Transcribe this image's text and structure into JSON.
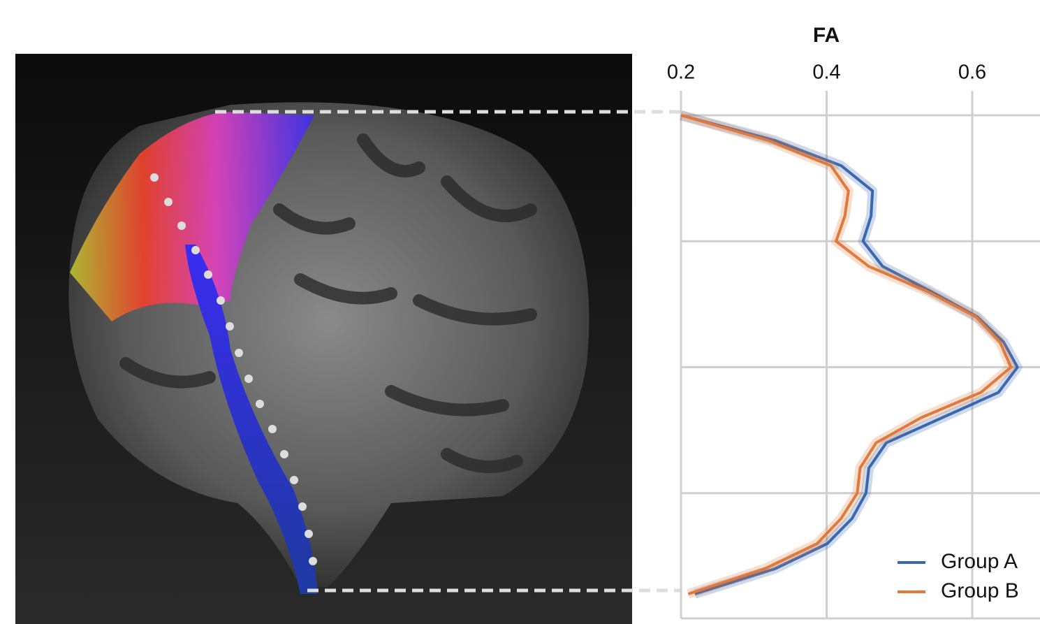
{
  "chart_data": {
    "type": "line",
    "xlabel": "FA",
    "xlim": [
      0.2,
      0.693
    ],
    "xticks": [
      0.2,
      0.4,
      0.6
    ],
    "grid": true,
    "legend": "lower right",
    "categories": [
      null,
      null,
      null,
      null,
      null,
      null,
      null,
      null,
      null,
      null,
      null,
      null,
      null,
      null,
      null,
      null,
      null,
      null,
      null,
      null
    ],
    "series": [
      {
        "name": "Group A",
        "color": "#3a68b0",
        "values": [
          0.2,
          0.329,
          0.42,
          0.463,
          0.461,
          0.45,
          0.477,
          0.544,
          0.607,
          0.643,
          0.662,
          0.636,
          0.559,
          0.482,
          0.458,
          0.454,
          0.435,
          0.401,
          0.329,
          0.219
        ]
      },
      {
        "name": "Group B",
        "color": "#e07a3c",
        "values": [
          0.2,
          0.32,
          0.406,
          0.43,
          0.425,
          0.413,
          0.458,
          0.539,
          0.605,
          0.638,
          0.653,
          0.612,
          0.53,
          0.468,
          0.446,
          0.442,
          0.42,
          0.387,
          0.315,
          0.21
        ]
      }
    ]
  }
}
